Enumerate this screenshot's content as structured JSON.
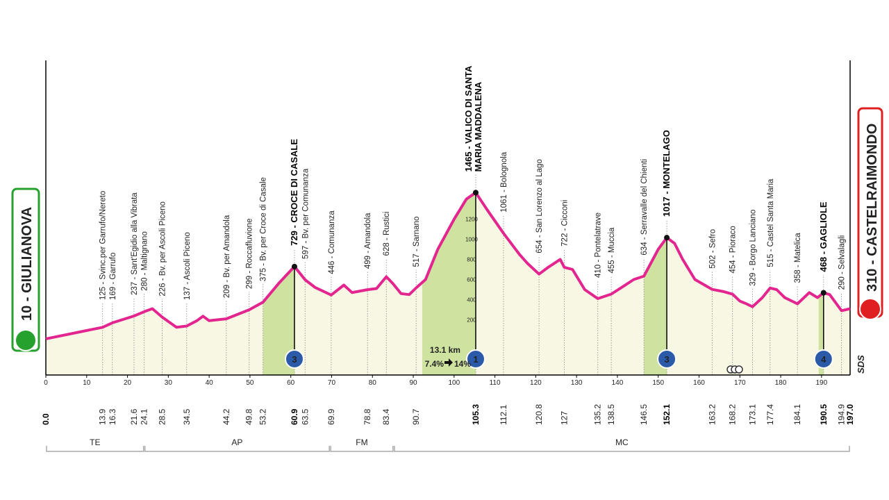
{
  "chart_data": {
    "type": "area",
    "x": [
      0,
      13.9,
      16.3,
      21.6,
      24.1,
      26.1,
      28.5,
      32,
      34.5,
      37,
      38.5,
      40,
      44.2,
      49.8,
      53.2,
      57,
      60.9,
      63.5,
      66,
      69.9,
      73,
      75,
      78.8,
      81,
      83.4,
      85,
      87,
      89,
      90.7,
      93,
      96,
      100,
      103,
      105.3,
      108,
      112.1,
      116,
      118,
      120.8,
      123,
      126,
      127,
      129,
      132,
      135.2,
      138.5,
      141,
      144,
      146.5,
      150,
      152.1,
      154,
      156,
      159,
      163.2,
      166,
      168.2,
      170,
      171.5,
      173.1,
      175.5,
      177.4,
      179,
      181,
      184.1,
      187,
      189,
      190.5,
      192,
      194.9,
      197
    ],
    "values": [
      10,
      125,
      169,
      237,
      280,
      310,
      226,
      125,
      137,
      190,
      235,
      190,
      209,
      299,
      375,
      560,
      729,
      597,
      520,
      446,
      545,
      470,
      499,
      510,
      628,
      560,
      460,
      450,
      517,
      600,
      900,
      1200,
      1400,
      1465,
      1300,
      1061,
      850,
      760,
      654,
      720,
      800,
      722,
      700,
      500,
      410,
      455,
      520,
      600,
      634,
      900,
      1017,
      960,
      800,
      600,
      502,
      480,
      454,
      385,
      360,
      329,
      420,
      515,
      500,
      420,
      358,
      470,
      420,
      468,
      450,
      290,
      310
    ],
    "color": "#e3268f",
    "xlim": [
      0,
      197
    ],
    "xticks": [
      0,
      10,
      20,
      30,
      40,
      50,
      60,
      70,
      80,
      90,
      100,
      110,
      120,
      130,
      140,
      150,
      160,
      170,
      180,
      190
    ],
    "ylim": [
      -350,
      2780
    ],
    "yticks": [
      200,
      400,
      600,
      800,
      1000,
      1200
    ],
    "start": {
      "km": {
        "value": 0,
        "label": "0.0"
      },
      "altitude": 10,
      "label": "10 - GIULIANOVA"
    },
    "finish": {
      "km": {
        "value": 197,
        "label": "197.0"
      },
      "altitude": 310,
      "label": "310 - CASTELRAIMONDO"
    },
    "waypoints": [
      {
        "km": 13.9,
        "altitude": 125,
        "label": "125 - Svinc.per Garrufo/Nereto"
      },
      {
        "km": 16.3,
        "altitude": 169,
        "label": "169 - Garrufo"
      },
      {
        "km": 21.6,
        "altitude": 237,
        "label": "237 - Sant'Egidio alla Vibrata"
      },
      {
        "km": 24.1,
        "altitude": 280,
        "label": "280 - Maltignano"
      },
      {
        "km": 28.5,
        "altitude": 226,
        "label": "226 - Bv. per Ascoli Piceno"
      },
      {
        "km": 34.5,
        "altitude": 137,
        "label": "137 - Ascoli Piceno"
      },
      {
        "km": 44.2,
        "altitude": 209,
        "label": "209 - Bv. per Amandola"
      },
      {
        "km": 49.8,
        "altitude": 299,
        "label": "299 - Roccafluvione"
      },
      {
        "km": 53.2,
        "altitude": 375,
        "label": "375 - Bv. per Croce di Casale"
      },
      {
        "km": 60.9,
        "altitude": 729,
        "label": "729 - CROCE DI CASALE"
      },
      {
        "km": 63.5,
        "altitude": 597,
        "label": "597 - Bv. per Comunanza"
      },
      {
        "km": 69.9,
        "altitude": 446,
        "label": "446 - Comunanza"
      },
      {
        "km": 78.8,
        "altitude": 499,
        "label": "499 - Amandola"
      },
      {
        "km": 83.4,
        "altitude": 628,
        "label": "628 - Rustici"
      },
      {
        "km": 90.7,
        "altitude": 517,
        "label": "517 - Sarnano"
      },
      {
        "km": 105.3,
        "altitude": 1465,
        "label": [
          "1465 - VALICO DI SANTA",
          "MARIA MADDALENA"
        ]
      },
      {
        "km": 112.1,
        "altitude": 1061,
        "label": "1061 - Bolognola"
      },
      {
        "km": 120.8,
        "altitude": 654,
        "label": "654 - San Lorenzo al Lago"
      },
      {
        "km": 127.0,
        "altitude": 722,
        "label": "722 - Cicconi"
      },
      {
        "km": 135.2,
        "altitude": 410,
        "label": "410 - Pontelatrave"
      },
      {
        "km": 138.5,
        "altitude": 455,
        "label": "455 - Muccia"
      },
      {
        "km": 146.5,
        "altitude": 634,
        "label": "634 - Serravalle del Chienti"
      },
      {
        "km": 152.1,
        "altitude": 1017,
        "label": "1017 - MONTELAGO"
      },
      {
        "km": 163.2,
        "altitude": 502,
        "label": "502 - Sefro"
      },
      {
        "km": 168.2,
        "altitude": 454,
        "label": "454 - Pioraco"
      },
      {
        "km": 173.1,
        "altitude": 329,
        "label": "329 - Borgo Lanciano"
      },
      {
        "km": 177.4,
        "altitude": 515,
        "label": "515 - Castel Santa Maria"
      },
      {
        "km": 184.1,
        "altitude": 358,
        "label": "358 - Matelica"
      },
      {
        "km": 190.5,
        "altitude": 468,
        "label": "468 - GAGLIOLE"
      },
      {
        "km": 194.9,
        "altitude": 290,
        "label": "290 - Selvalagli"
      }
    ],
    "climbs": [
      {
        "start": 53.2,
        "km": 60.9,
        "altitude": 729,
        "category": 3
      },
      {
        "start": 92.2,
        "km": 105.3,
        "altitude": 1465,
        "category": 1,
        "length": "13.1 km",
        "avg": "7.4%",
        "max": "14%"
      },
      {
        "start": 146.5,
        "km": 152.1,
        "altitude": 1017,
        "category": 3
      },
      {
        "start": 189.3,
        "km": 190.5,
        "altitude": 468,
        "category": 4
      }
    ],
    "regions": [
      {
        "name": "TE",
        "start": 0,
        "end": 24.1
      },
      {
        "name": "AP",
        "start": 24.1,
        "end": 69.6
      },
      {
        "name": "FM",
        "start": 69.6,
        "end": 85.2
      },
      {
        "name": "MC",
        "start": 85.2,
        "end": 197
      }
    ],
    "brand": "SDS"
  }
}
